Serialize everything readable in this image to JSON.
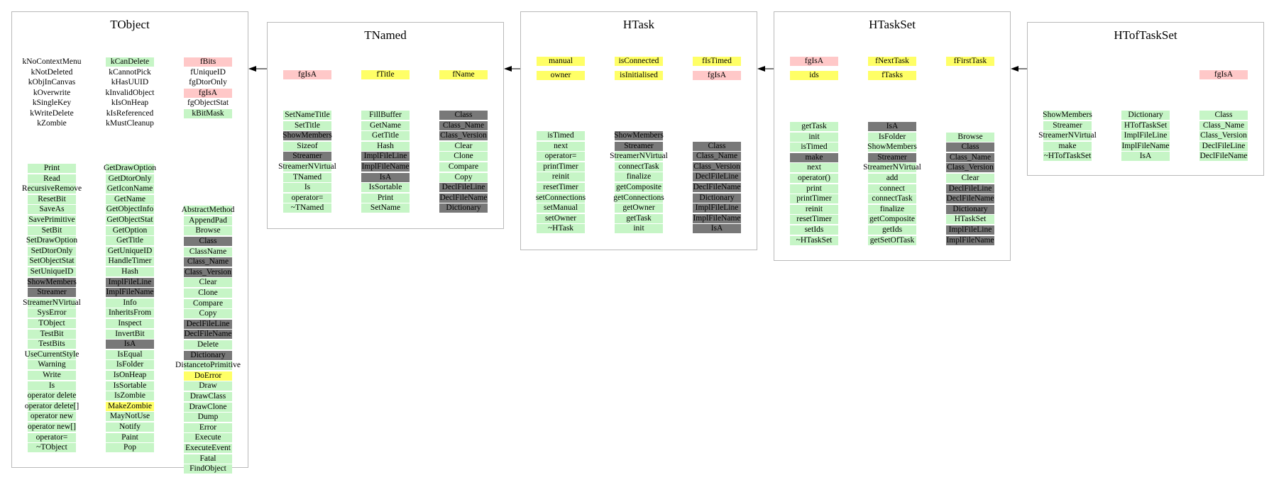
{
  "diagram": {
    "boxes": [
      {
        "title": "TObject",
        "columns": [
          [
            [
              "kNoContextMenu",
              "w"
            ],
            [
              "kNotDeleted",
              "w"
            ],
            [
              "kObjInCanvas",
              "w"
            ],
            [
              "kOverwrite",
              "w"
            ],
            [
              "kSingleKey",
              "w"
            ],
            [
              "kWriteDelete",
              "w"
            ],
            [
              "kZombie",
              "w"
            ]
          ],
          [
            [
              "kCanDelete",
              "g"
            ],
            [
              "kCannotPick",
              "w"
            ],
            [
              "kHasUUID",
              "w"
            ],
            [
              "kInvalidObject",
              "w"
            ],
            [
              "kIsOnHeap",
              "w"
            ],
            [
              "kIsReferenced",
              "w"
            ],
            [
              "kMustCleanup",
              "w"
            ]
          ],
          [
            [
              "fBits",
              "p"
            ],
            [
              "fUniqueID",
              "w"
            ],
            [
              "fgDtorOnly",
              "w"
            ],
            [
              "fgIsA",
              "p"
            ],
            [
              "fgObjectStat",
              "w"
            ],
            [
              "kBitMask",
              "g"
            ]
          ]
        ],
        "methods": [
          [
            [
              "Print",
              "g"
            ],
            [
              "Read",
              "g"
            ],
            [
              "RecursiveRemove",
              "g"
            ],
            [
              "ResetBit",
              "g"
            ],
            [
              "SaveAs",
              "g"
            ],
            [
              "SavePrimitive",
              "g"
            ],
            [
              "SetBit",
              "g"
            ],
            [
              "SetDrawOption",
              "g"
            ],
            [
              "SetDtorOnly",
              "g"
            ],
            [
              "SetObjectStat",
              "g"
            ],
            [
              "SetUniqueID",
              "g"
            ],
            [
              "ShowMembers",
              "k"
            ],
            [
              "Streamer",
              "k"
            ],
            [
              "StreamerNVirtual",
              "g"
            ],
            [
              "SysError",
              "g"
            ],
            [
              "TObject",
              "g"
            ],
            [
              "TestBit",
              "g"
            ],
            [
              "TestBits",
              "g"
            ],
            [
              "UseCurrentStyle",
              "g"
            ],
            [
              "Warning",
              "g"
            ],
            [
              "Write",
              "g"
            ],
            [
              "Is",
              "g"
            ],
            [
              "operator delete",
              "g"
            ],
            [
              "operator delete[]",
              "g"
            ],
            [
              "operator new",
              "g"
            ],
            [
              "operator new[]",
              "g"
            ],
            [
              "operator=",
              "g"
            ],
            [
              "~TObject",
              "g"
            ]
          ],
          [
            [
              "GetDrawOption",
              "g"
            ],
            [
              "GetDtorOnly",
              "g"
            ],
            [
              "GetIconName",
              "g"
            ],
            [
              "GetName",
              "g"
            ],
            [
              "GetObjectInfo",
              "g"
            ],
            [
              "GetObjectStat",
              "g"
            ],
            [
              "GetOption",
              "g"
            ],
            [
              "GetTitle",
              "g"
            ],
            [
              "GetUniqueID",
              "g"
            ],
            [
              "HandleTimer",
              "g"
            ],
            [
              "Hash",
              "g"
            ],
            [
              "ImplFileLine",
              "k"
            ],
            [
              "ImplFileName",
              "k"
            ],
            [
              "Info",
              "g"
            ],
            [
              "InheritsFrom",
              "g"
            ],
            [
              "Inspect",
              "g"
            ],
            [
              "InvertBit",
              "g"
            ],
            [
              "IsA",
              "k"
            ],
            [
              "IsEqual",
              "g"
            ],
            [
              "IsFolder",
              "g"
            ],
            [
              "IsOnHeap",
              "g"
            ],
            [
              "IsSortable",
              "g"
            ],
            [
              "IsZombie",
              "g"
            ],
            [
              "MakeZombie",
              "y"
            ],
            [
              "MayNotUse",
              "g"
            ],
            [
              "Notify",
              "g"
            ],
            [
              "Paint",
              "g"
            ],
            [
              "Pop",
              "g"
            ]
          ],
          [
            [
              "",
              "w"
            ],
            [
              "",
              "w"
            ],
            [
              "AbstractMethod",
              "g"
            ],
            [
              "AppendPad",
              "g"
            ],
            [
              "Browse",
              "g"
            ],
            [
              "Class",
              "k"
            ],
            [
              "ClassName",
              "g"
            ],
            [
              "Class_Name",
              "k"
            ],
            [
              "Class_Version",
              "k"
            ],
            [
              "Clear",
              "g"
            ],
            [
              "Clone",
              "g"
            ],
            [
              "Compare",
              "g"
            ],
            [
              "Copy",
              "g"
            ],
            [
              "DeclFileLine",
              "k"
            ],
            [
              "DeclFileName",
              "k"
            ],
            [
              "Delete",
              "g"
            ],
            [
              "Dictionary",
              "k"
            ],
            [
              "DistancetoPrimitive",
              "g"
            ],
            [
              "DoError",
              "y"
            ],
            [
              "Draw",
              "g"
            ],
            [
              "DrawClass",
              "g"
            ],
            [
              "DrawClone",
              "g"
            ],
            [
              "Dump",
              "g"
            ],
            [
              "Error",
              "g"
            ],
            [
              "Execute",
              "g"
            ],
            [
              "ExecuteEvent",
              "g"
            ],
            [
              "Fatal",
              "g"
            ],
            [
              "FindObject",
              "g"
            ]
          ]
        ]
      },
      {
        "title": "TNamed",
        "columns": [
          [
            [
              "fgIsA",
              "p"
            ]
          ],
          [
            [
              "fTitle",
              "y"
            ]
          ],
          [
            [
              "fName",
              "y"
            ]
          ]
        ],
        "methods": [
          [
            [
              "SetNameTitle",
              "g"
            ],
            [
              "SetTitle",
              "g"
            ],
            [
              "ShowMembers",
              "k"
            ],
            [
              "Sizeof",
              "g"
            ],
            [
              "Streamer",
              "k"
            ],
            [
              "StreamerNVirtual",
              "g"
            ],
            [
              "TNamed",
              "g"
            ],
            [
              "Is",
              "g"
            ],
            [
              "operator=",
              "g"
            ],
            [
              "~TNamed",
              "g"
            ]
          ],
          [
            [
              "FillBuffer",
              "g"
            ],
            [
              "GetName",
              "g"
            ],
            [
              "GetTitle",
              "g"
            ],
            [
              "Hash",
              "g"
            ],
            [
              "ImplFileLine",
              "k"
            ],
            [
              "ImplFileName",
              "k"
            ],
            [
              "IsA",
              "k"
            ],
            [
              "IsSortable",
              "g"
            ],
            [
              "Print",
              "g"
            ],
            [
              "SetName",
              "g"
            ]
          ],
          [
            [
              "Class",
              "k"
            ],
            [
              "Class_Name",
              "k"
            ],
            [
              "Class_Version",
              "k"
            ],
            [
              "Clear",
              "g"
            ],
            [
              "Clone",
              "g"
            ],
            [
              "Compare",
              "g"
            ],
            [
              "Copy",
              "g"
            ],
            [
              "DeclFileLine",
              "k"
            ],
            [
              "DeclFileName",
              "k"
            ],
            [
              "Dictionary",
              "k"
            ]
          ]
        ]
      },
      {
        "title": "HTask",
        "columns": [
          [
            [
              "manual",
              "y"
            ],
            [
              "owner",
              "y"
            ]
          ],
          [
            [
              "isConnected",
              "y"
            ],
            [
              "isInitialised",
              "y"
            ]
          ],
          [
            [
              "fIsTimed",
              "y"
            ],
            [
              "fgIsA",
              "p"
            ]
          ]
        ],
        "methods": [
          [
            [
              "isTimed",
              "g"
            ],
            [
              "next",
              "g"
            ],
            [
              "operator=",
              "g"
            ],
            [
              "printTimer",
              "g"
            ],
            [
              "reinit",
              "g"
            ],
            [
              "resetTimer",
              "g"
            ],
            [
              "setConnections",
              "g"
            ],
            [
              "setManual",
              "g"
            ],
            [
              "setOwner",
              "g"
            ],
            [
              "~HTask",
              "g"
            ]
          ],
          [
            [
              "ShowMembers",
              "k"
            ],
            [
              "Streamer",
              "k"
            ],
            [
              "StreamerNVirtual",
              "g"
            ],
            [
              "connectTask",
              "g"
            ],
            [
              "finalize",
              "g"
            ],
            [
              "getComposite",
              "g"
            ],
            [
              "getConnections",
              "g"
            ],
            [
              "getOwner",
              "g"
            ],
            [
              "getTask",
              "g"
            ],
            [
              "init",
              "g"
            ]
          ],
          [
            [
              "",
              "w"
            ],
            [
              "Class",
              "k"
            ],
            [
              "Class_Name",
              "k"
            ],
            [
              "Class_Version",
              "k"
            ],
            [
              "DeclFileLine",
              "k"
            ],
            [
              "DeclFileName",
              "k"
            ],
            [
              "Dictionary",
              "k"
            ],
            [
              "ImplFileLine",
              "k"
            ],
            [
              "ImplFileName",
              "k"
            ],
            [
              "IsA",
              "k"
            ]
          ]
        ]
      },
      {
        "title": "HTaskSet",
        "columns": [
          [
            [
              "fgIsA",
              "p"
            ],
            [
              "ids",
              "y"
            ]
          ],
          [
            [
              "fNextTask",
              "y"
            ],
            [
              "fTasks",
              "y"
            ]
          ],
          [
            [
              "fFirstTask",
              "y"
            ]
          ]
        ],
        "methods": [
          [
            [
              "getTask",
              "g"
            ],
            [
              "init",
              "g"
            ],
            [
              "isTimed",
              "g"
            ],
            [
              "make",
              "k"
            ],
            [
              "next",
              "g"
            ],
            [
              "operator()",
              "g"
            ],
            [
              "print",
              "g"
            ],
            [
              "printTimer",
              "g"
            ],
            [
              "reinit",
              "g"
            ],
            [
              "resetTimer",
              "g"
            ],
            [
              "setIds",
              "g"
            ],
            [
              "~HTaskSet",
              "g"
            ]
          ],
          [
            [
              "IsA",
              "k"
            ],
            [
              "IsFolder",
              "g"
            ],
            [
              "ShowMembers",
              "g"
            ],
            [
              "Streamer",
              "k"
            ],
            [
              "StreamerNVirtual",
              "g"
            ],
            [
              "add",
              "g"
            ],
            [
              "connect",
              "g"
            ],
            [
              "connectTask",
              "g"
            ],
            [
              "finalize",
              "g"
            ],
            [
              "getComposite",
              "g"
            ],
            [
              "getIds",
              "g"
            ],
            [
              "getSetOfTask",
              "g"
            ]
          ],
          [
            [
              "",
              "w"
            ],
            [
              "Browse",
              "g"
            ],
            [
              "Class",
              "k"
            ],
            [
              "Class_Name",
              "k"
            ],
            [
              "Class_Version",
              "k"
            ],
            [
              "Clear",
              "g"
            ],
            [
              "DeclFileLine",
              "k"
            ],
            [
              "DeclFileName",
              "k"
            ],
            [
              "Dictionary",
              "k"
            ],
            [
              "HTaskSet",
              "g"
            ],
            [
              "ImplFileLine",
              "k"
            ],
            [
              "ImplFileName",
              "k"
            ]
          ]
        ]
      },
      {
        "title": "HTofTaskSet",
        "columns": [
          [],
          [],
          [
            [
              "fgIsA",
              "p"
            ]
          ]
        ],
        "methods": [
          [
            [
              "ShowMembers",
              "g"
            ],
            [
              "Streamer",
              "g"
            ],
            [
              "StreamerNVirtual",
              "g"
            ],
            [
              "make",
              "g"
            ],
            [
              "~HTofTaskSet",
              "g"
            ]
          ],
          [
            [
              "Dictionary",
              "g"
            ],
            [
              "HTofTaskSet",
              "g"
            ],
            [
              "ImplFileLine",
              "g"
            ],
            [
              "ImplFileName",
              "g"
            ],
            [
              "IsA",
              "g"
            ]
          ],
          [
            [
              "Class",
              "g"
            ],
            [
              "Class_Name",
              "g"
            ],
            [
              "Class_Version",
              "g"
            ],
            [
              "DeclFileLine",
              "g"
            ],
            [
              "DeclFileName",
              "g"
            ]
          ]
        ]
      }
    ],
    "colors": {
      "g": "#c6f5c6",
      "y": "#ffff66",
      "p": "#ffc8c8",
      "k": "#787878",
      "border": "#b9b9b9"
    }
  }
}
